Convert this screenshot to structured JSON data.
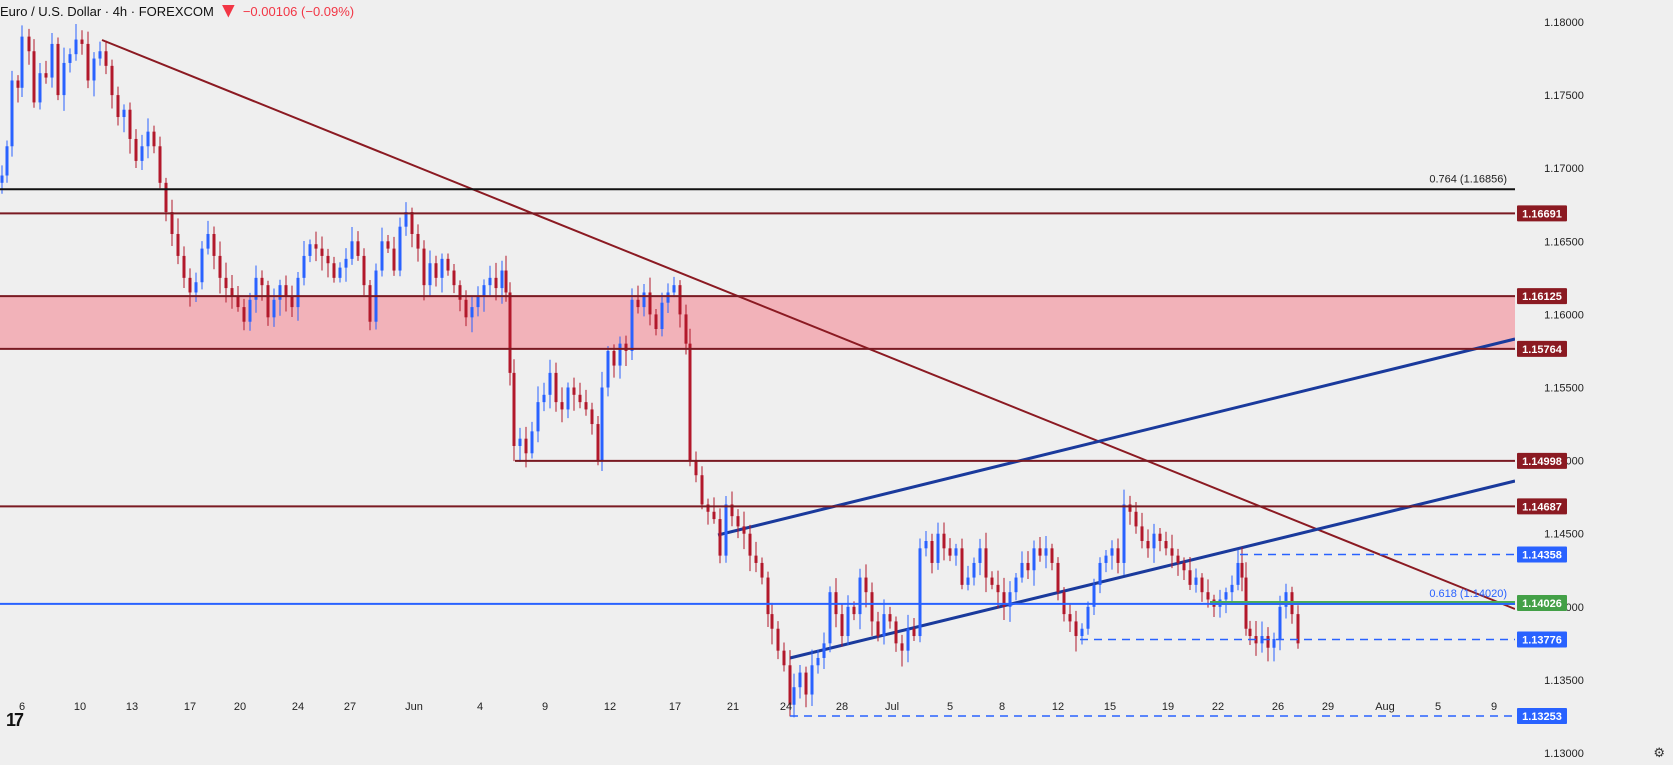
{
  "header": {
    "symbol": "Euro / U.S. Dollar · 4h · FOREXCOM",
    "change": "−0.00106 (−0.09%)"
  },
  "icons": {
    "logo": "tradingview-logo-icon",
    "settings": "gear-icon",
    "flag": "flag-icon"
  },
  "colors": {
    "up": "#2962ff",
    "down": "#b2182b",
    "level": "#7a1a22",
    "fib": "#111111",
    "fib618": "#2962ff",
    "zone": "#f1aeb5",
    "channel": "#1a3a9c"
  },
  "chart_data": {
    "type": "candlestick",
    "timeframe": "4h",
    "ylim": [
      1.13,
      1.18
    ],
    "y_ticks": [
      "1.18000",
      "1.17500",
      "1.17000",
      "1.16500",
      "1.16000",
      "1.15500",
      "1.15000",
      "1.14500",
      "1.14000",
      "1.13500",
      "1.13000"
    ],
    "x_ticks": [
      "6",
      "10",
      "13",
      "17",
      "20",
      "24",
      "27",
      "Jun",
      "4",
      "9",
      "12",
      "17",
      "21",
      "24",
      "28",
      "Jul",
      "5",
      "8",
      "12",
      "15",
      "19",
      "22",
      "26",
      "29",
      "Aug",
      "5",
      "9"
    ],
    "horizontal_levels": [
      {
        "value": 1.16856,
        "label": "0.764 (1.16856)",
        "style": "fib"
      },
      {
        "value": 1.16691,
        "label": "1.16691",
        "style": "resistance"
      },
      {
        "value": 1.16125,
        "label": "1.16125",
        "style": "zone-top"
      },
      {
        "value": 1.15764,
        "label": "1.15764",
        "style": "zone-bottom"
      },
      {
        "value": 1.14998,
        "label": "1.14998",
        "style": "resistance"
      },
      {
        "value": 1.14687,
        "label": "1.14687",
        "style": "resistance"
      },
      {
        "value": 1.14358,
        "label": "1.14358",
        "style": "dashed"
      },
      {
        "value": 1.14026,
        "label": "1.14026",
        "style": "green"
      },
      {
        "value": 1.1402,
        "label": "0.618 (1.14020)",
        "style": "fib618"
      },
      {
        "value": 1.13776,
        "label": "1.13776",
        "style": "dashed"
      },
      {
        "value": 1.13253,
        "label": "1.13253",
        "style": "dashed"
      }
    ],
    "close_path": [
      [
        0,
        1.1695
      ],
      [
        5,
        1.1715
      ],
      [
        10,
        1.176
      ],
      [
        16,
        1.1755
      ],
      [
        20,
        1.179
      ],
      [
        27,
        1.178
      ],
      [
        32,
        1.1745
      ],
      [
        38,
        1.1765
      ],
      [
        44,
        1.1762
      ],
      [
        50,
        1.1785
      ],
      [
        56,
        1.175
      ],
      [
        62,
        1.1772
      ],
      [
        68,
        1.1778
      ],
      [
        74,
        1.1788
      ],
      [
        80,
        1.1785
      ],
      [
        86,
        1.176
      ],
      [
        92,
        1.1775
      ],
      [
        98,
        1.178
      ],
      [
        104,
        1.177
      ],
      [
        110,
        1.175
      ],
      [
        116,
        1.1735
      ],
      [
        122,
        1.174
      ],
      [
        128,
        1.172
      ],
      [
        134,
        1.1705
      ],
      [
        140,
        1.1715
      ],
      [
        146,
        1.1725
      ],
      [
        152,
        1.1715
      ],
      [
        158,
        1.169
      ],
      [
        164,
        1.167
      ],
      [
        170,
        1.1655
      ],
      [
        176,
        1.164
      ],
      [
        182,
        1.1625
      ],
      [
        188,
        1.1615
      ],
      [
        194,
        1.1622
      ],
      [
        200,
        1.1645
      ],
      [
        206,
        1.1655
      ],
      [
        212,
        1.164
      ],
      [
        218,
        1.1625
      ],
      [
        224,
        1.1618
      ],
      [
        230,
        1.1612
      ],
      [
        236,
        1.1605
      ],
      [
        242,
        1.1595
      ],
      [
        248,
        1.161
      ],
      [
        254,
        1.1625
      ],
      [
        260,
        1.162
      ],
      [
        266,
        1.1598
      ],
      [
        272,
        1.161
      ],
      [
        278,
        1.162
      ],
      [
        284,
        1.1612
      ],
      [
        290,
        1.1605
      ],
      [
        296,
        1.1625
      ],
      [
        302,
        1.164
      ],
      [
        308,
        1.1648
      ],
      [
        314,
        1.1645
      ],
      [
        320,
        1.164
      ],
      [
        326,
        1.1635
      ],
      [
        332,
        1.1625
      ],
      [
        338,
        1.1632
      ],
      [
        344,
        1.1638
      ],
      [
        350,
        1.165
      ],
      [
        356,
        1.164
      ],
      [
        362,
        1.162
      ],
      [
        368,
        1.1595
      ],
      [
        374,
        1.163
      ],
      [
        380,
        1.165
      ],
      [
        386,
        1.1645
      ],
      [
        392,
        1.163
      ],
      [
        398,
        1.166
      ],
      [
        404,
        1.167
      ],
      [
        410,
        1.1655
      ],
      [
        416,
        1.1645
      ],
      [
        422,
        1.162
      ],
      [
        428,
        1.1635
      ],
      [
        434,
        1.1625
      ],
      [
        440,
        1.1638
      ],
      [
        446,
        1.163
      ],
      [
        452,
        1.162
      ],
      [
        458,
        1.161
      ],
      [
        464,
        1.1598
      ],
      [
        470,
        1.1605
      ],
      [
        476,
        1.1612
      ],
      [
        482,
        1.162
      ],
      [
        488,
        1.1625
      ],
      [
        494,
        1.1618
      ],
      [
        500,
        1.163
      ],
      [
        504,
        1.1615
      ],
      [
        508,
        1.156
      ],
      [
        512,
        1.151
      ],
      [
        518,
        1.1515
      ],
      [
        524,
        1.1505
      ],
      [
        530,
        1.152
      ],
      [
        536,
        1.154
      ],
      [
        542,
        1.1545
      ],
      [
        548,
        1.156
      ],
      [
        554,
        1.154
      ],
      [
        560,
        1.1535
      ],
      [
        566,
        1.155
      ],
      [
        572,
        1.1545
      ],
      [
        578,
        1.154
      ],
      [
        584,
        1.1535
      ],
      [
        590,
        1.1525
      ],
      [
        596,
        1.15
      ],
      [
        600,
        1.155
      ],
      [
        606,
        1.1575
      ],
      [
        612,
        1.1565
      ],
      [
        618,
        1.158
      ],
      [
        624,
        1.1575
      ],
      [
        630,
        1.161
      ],
      [
        636,
        1.1605
      ],
      [
        642,
        1.1615
      ],
      [
        648,
        1.16
      ],
      [
        654,
        1.159
      ],
      [
        660,
        1.1608
      ],
      [
        666,
        1.1615
      ],
      [
        672,
        1.162
      ],
      [
        678,
        1.16
      ],
      [
        684,
        1.158
      ],
      [
        688,
        1.15
      ],
      [
        694,
        1.149
      ],
      [
        700,
        1.147
      ],
      [
        706,
        1.1465
      ],
      [
        712,
        1.146
      ],
      [
        718,
        1.1435
      ],
      [
        724,
        1.147
      ],
      [
        730,
        1.1462
      ],
      [
        736,
        1.1455
      ],
      [
        742,
        1.145
      ],
      [
        748,
        1.1435
      ],
      [
        754,
        1.143
      ],
      [
        760,
        1.142
      ],
      [
        766,
        1.1395
      ],
      [
        770,
        1.1385
      ],
      [
        776,
        1.137
      ],
      [
        782,
        1.136
      ],
      [
        788,
        1.1333
      ],
      [
        792,
        1.1345
      ],
      [
        798,
        1.1355
      ],
      [
        804,
        1.134
      ],
      [
        810,
        1.136
      ],
      [
        816,
        1.1365
      ],
      [
        822,
        1.1375
      ],
      [
        828,
        1.141
      ],
      [
        834,
        1.1395
      ],
      [
        840,
        1.138
      ],
      [
        846,
        1.14
      ],
      [
        852,
        1.1395
      ],
      [
        858,
        1.142
      ],
      [
        864,
        1.141
      ],
      [
        870,
        1.139
      ],
      [
        876,
        1.138
      ],
      [
        882,
        1.1395
      ],
      [
        888,
        1.139
      ],
      [
        894,
        1.1375
      ],
      [
        900,
        1.137
      ],
      [
        906,
        1.1385
      ],
      [
        912,
        1.138
      ],
      [
        918,
        1.144
      ],
      [
        924,
        1.1445
      ],
      [
        930,
        1.143
      ],
      [
        936,
        1.145
      ],
      [
        942,
        1.144
      ],
      [
        948,
        1.1435
      ],
      [
        954,
        1.144
      ],
      [
        960,
        1.1415
      ],
      [
        966,
        1.142
      ],
      [
        972,
        1.143
      ],
      [
        978,
        1.144
      ],
      [
        984,
        1.142
      ],
      [
        990,
        1.1415
      ],
      [
        996,
        1.141
      ],
      [
        1002,
        1.14
      ],
      [
        1008,
        1.141
      ],
      [
        1014,
        1.142
      ],
      [
        1020,
        1.143
      ],
      [
        1026,
        1.1425
      ],
      [
        1032,
        1.144
      ],
      [
        1038,
        1.1435
      ],
      [
        1044,
        1.144
      ],
      [
        1050,
        1.143
      ],
      [
        1056,
        1.141
      ],
      [
        1062,
        1.1395
      ],
      [
        1068,
        1.139
      ],
      [
        1074,
        1.138
      ],
      [
        1080,
        1.1385
      ],
      [
        1086,
        1.14
      ],
      [
        1092,
        1.1415
      ],
      [
        1098,
        1.143
      ],
      [
        1104,
        1.1435
      ],
      [
        1110,
        1.144
      ],
      [
        1116,
        1.143
      ],
      [
        1122,
        1.147
      ],
      [
        1128,
        1.1465
      ],
      [
        1134,
        1.1455
      ],
      [
        1140,
        1.1445
      ],
      [
        1146,
        1.144
      ],
      [
        1152,
        1.145
      ],
      [
        1158,
        1.1445
      ],
      [
        1164,
        1.144
      ],
      [
        1170,
        1.1435
      ],
      [
        1176,
        1.143
      ],
      [
        1182,
        1.1425
      ],
      [
        1188,
        1.1415
      ],
      [
        1194,
        1.142
      ],
      [
        1200,
        1.141
      ],
      [
        1206,
        1.1405
      ],
      [
        1212,
        1.14
      ],
      [
        1218,
        1.1405
      ],
      [
        1224,
        1.141
      ],
      [
        1230,
        1.1415
      ],
      [
        1236,
        1.143
      ],
      [
        1240,
        1.142
      ],
      [
        1244,
        1.1385
      ],
      [
        1248,
        1.138
      ],
      [
        1254,
        1.1375
      ],
      [
        1260,
        1.138
      ],
      [
        1266,
        1.1372
      ],
      [
        1272,
        1.1378
      ],
      [
        1278,
        1.14
      ],
      [
        1284,
        1.141
      ],
      [
        1290,
        1.1395
      ],
      [
        1296,
        1.1375
      ]
    ]
  }
}
